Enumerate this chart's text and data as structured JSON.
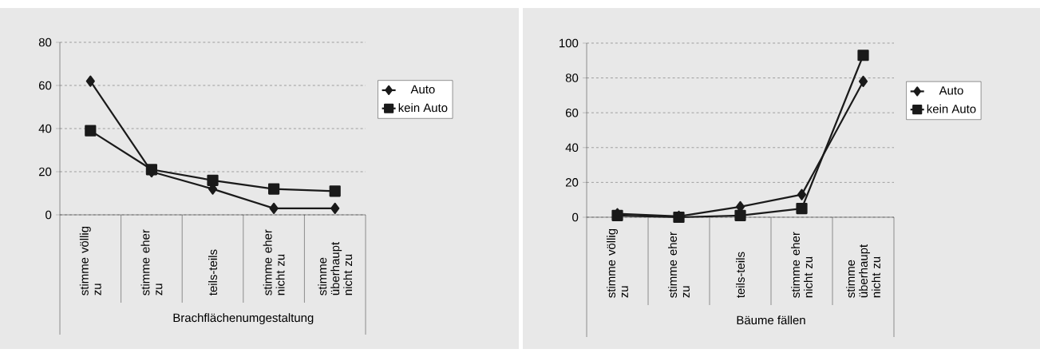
{
  "chart_data": [
    {
      "type": "line",
      "xlabel": "Brachflächenumgestaltung",
      "categories": [
        "stimme völlig zu",
        "stimme eher zu",
        "teils-teils",
        "stimme eher nicht zu",
        "stimme überhaupt nicht zu"
      ],
      "series": [
        {
          "name": "Auto",
          "color": "#1a1a1a",
          "marker": "diamond",
          "values": [
            62,
            20,
            12,
            3,
            3
          ]
        },
        {
          "name": "kein Auto",
          "color": "#1a1a1a",
          "marker": "square",
          "values": [
            39,
            21,
            16,
            12,
            11
          ]
        }
      ],
      "ylim": [
        0,
        80
      ],
      "yticks": [
        0,
        20,
        40,
        60,
        80
      ],
      "grid": "y",
      "legend": "right",
      "line_style": "solid"
    },
    {
      "type": "line",
      "xlabel": "Bäume fällen",
      "categories": [
        "stimme völlig zu",
        "stimme eher zu",
        "teils-teils",
        "stimme eher nicht zu",
        "stimme überhaupt nicht zu"
      ],
      "series": [
        {
          "name": "Auto",
          "color": "#1a1a1a",
          "marker": "diamond",
          "values": [
            2,
            0.5,
            6,
            13,
            78
          ]
        },
        {
          "name": "kein Auto",
          "color": "#1a1a1a",
          "marker": "square",
          "values": [
            1,
            0,
            1,
            5,
            93
          ]
        }
      ],
      "ylim": [
        0,
        100
      ],
      "yticks": [
        0,
        20,
        40,
        60,
        80,
        100
      ],
      "grid": "y",
      "legend": "right",
      "line_style": "solid"
    }
  ]
}
